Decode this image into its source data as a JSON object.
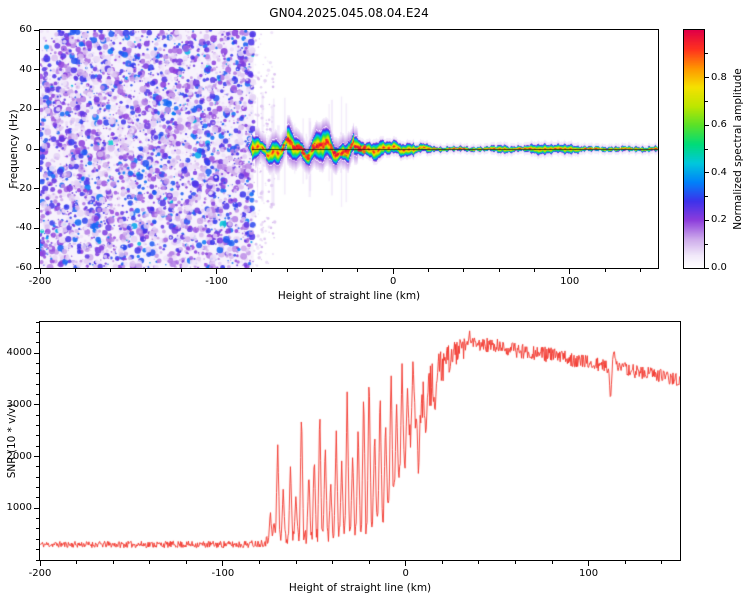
{
  "title": "GN04.2025.045.08.04.E24",
  "background_color": "#ffffff",
  "chart_data": [
    {
      "type": "heatmap",
      "name": "doppler-spectrogram",
      "xlabel": "Height of straight line (km)",
      "ylabel": "Frequency (Hz)",
      "xlim": [
        -200,
        150
      ],
      "ylim": [
        -60,
        60
      ],
      "xticks": {
        "major": [
          -200,
          -100,
          0,
          100
        ],
        "labels": [
          "-200",
          "-100",
          "0",
          "100"
        ],
        "minor_step": 20
      },
      "yticks": {
        "major": [
          -60,
          -40,
          -20,
          0,
          20,
          40,
          60
        ],
        "labels": [
          "-60",
          "-40",
          "-20",
          "0",
          "20",
          "40",
          "60"
        ],
        "minor_step": 10
      },
      "colorbar": {
        "label": "Normalized spectral amplitude",
        "range": [
          0,
          1
        ],
        "ticks": [
          0,
          0.2,
          0.4,
          0.6,
          0.8
        ],
        "tick_labels": [
          "0.0",
          "0.2",
          "0.4",
          "0.6",
          "0.8"
        ]
      },
      "colormap_stops": [
        [
          0.0,
          "#ffffff"
        ],
        [
          0.05,
          "#f2e9fa"
        ],
        [
          0.12,
          "#cdaaeb"
        ],
        [
          0.2,
          "#8c3cdc"
        ],
        [
          0.28,
          "#3c32eb"
        ],
        [
          0.36,
          "#0082fa"
        ],
        [
          0.44,
          "#00c8dc"
        ],
        [
          0.52,
          "#00dc78"
        ],
        [
          0.6,
          "#5ae128"
        ],
        [
          0.68,
          "#bee600"
        ],
        [
          0.76,
          "#f5e100"
        ],
        [
          0.84,
          "#ff9600"
        ],
        [
          0.92,
          "#ff321e"
        ],
        [
          1.0,
          "#e10046"
        ]
      ],
      "features": {
        "noise_region": {
          "x_range": [
            -200,
            -79
          ],
          "amplitude_range": [
            0.05,
            0.35
          ]
        },
        "signal_band": {
          "x_range": [
            -83,
            150
          ],
          "center_freq_hz": 0,
          "wide_halfwidth_hz": 9,
          "thin_halfwidth_hz": 1.2,
          "peak_amplitude": 0.95
        },
        "zero_freq_line": {
          "x_range": [
            -80,
            150
          ],
          "freq_hz": 0,
          "color": "#141414"
        }
      }
    },
    {
      "type": "line",
      "name": "snr-profile",
      "xlabel": "Height of straight line (km)",
      "ylabel": "SNR (10 * v/v)",
      "xlim": [
        -200,
        150
      ],
      "ylim": [
        0,
        4600
      ],
      "xticks": {
        "major": [
          -200,
          -100,
          0,
          100
        ],
        "labels": [
          "-200",
          "-100",
          "0",
          "100"
        ],
        "minor_step": 20
      },
      "yticks": {
        "major": [
          1000,
          2000,
          3000,
          4000
        ],
        "labels": [
          "1000",
          "2000",
          "3000",
          "4000"
        ],
        "minor_step": 200
      },
      "line_color": "#f23228",
      "baseline": [
        [
          -200,
          300
        ],
        [
          -90,
          300
        ],
        [
          -80,
          320
        ],
        [
          -75,
          380
        ],
        [
          -60,
          430
        ],
        [
          -40,
          480
        ],
        [
          -25,
          560
        ],
        [
          -15,
          750
        ],
        [
          -8,
          1100
        ],
        [
          -2,
          1700
        ],
        [
          2,
          2300
        ],
        [
          6,
          2850
        ],
        [
          10,
          3150
        ],
        [
          15,
          3450
        ],
        [
          20,
          3750
        ],
        [
          25,
          3950
        ],
        [
          30,
          4060
        ],
        [
          40,
          4160
        ],
        [
          50,
          4120
        ],
        [
          60,
          4060
        ],
        [
          70,
          4010
        ],
        [
          80,
          3960
        ],
        [
          90,
          3890
        ],
        [
          100,
          3810
        ],
        [
          110,
          3730
        ],
        [
          120,
          3690
        ],
        [
          130,
          3620
        ],
        [
          140,
          3560
        ],
        [
          150,
          3480
        ]
      ],
      "noise_amplitude": [
        [
          -200,
          60
        ],
        [
          -80,
          70
        ],
        [
          -75,
          110
        ],
        [
          -20,
          200
        ],
        [
          0,
          260
        ],
        [
          5,
          360
        ],
        [
          10,
          430
        ],
        [
          15,
          400
        ],
        [
          20,
          330
        ],
        [
          30,
          210
        ],
        [
          50,
          150
        ],
        [
          100,
          140
        ],
        [
          150,
          130
        ]
      ],
      "spikes": [
        [
          -74,
          900
        ],
        [
          -72,
          700
        ],
        [
          -70,
          2320
        ],
        [
          -67,
          1400
        ],
        [
          -63,
          1900
        ],
        [
          -60,
          1250
        ],
        [
          -57,
          2900
        ],
        [
          -53,
          1700
        ],
        [
          -50,
          2060
        ],
        [
          -47,
          2950
        ],
        [
          -44,
          2300
        ],
        [
          -41,
          1500
        ],
        [
          -38,
          2560
        ],
        [
          -35,
          1950
        ],
        [
          -32,
          3300
        ],
        [
          -29,
          2100
        ],
        [
          -26,
          2620
        ],
        [
          -23,
          3340
        ],
        [
          -20,
          3680
        ],
        [
          -17,
          2520
        ],
        [
          -14,
          3290
        ],
        [
          -11,
          2720
        ],
        [
          -8,
          3740
        ],
        [
          -5,
          3020
        ],
        [
          -2,
          3790
        ],
        [
          1,
          3330
        ],
        [
          4,
          3860
        ],
        [
          35,
          4380
        ],
        [
          114,
          4120
        ]
      ],
      "dips": [
        [
          7,
          1550
        ],
        [
          11,
          2350
        ],
        [
          16,
          2800
        ],
        [
          112,
          3060
        ]
      ]
    }
  ]
}
